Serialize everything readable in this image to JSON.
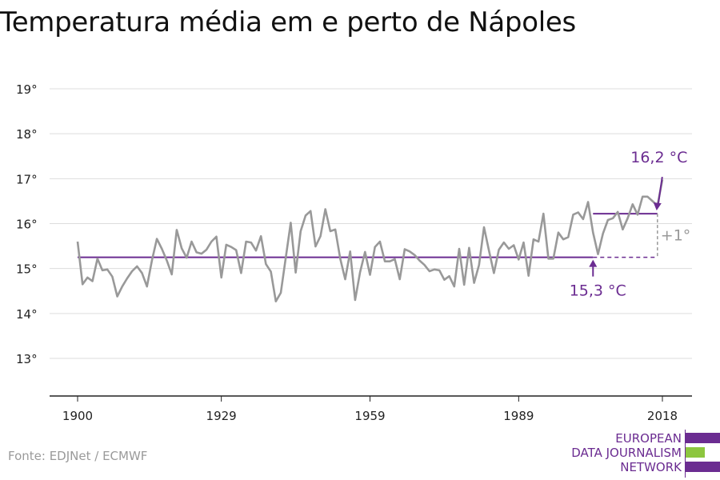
{
  "title": "Temperatura média em e perto de Nápoles",
  "source": "Fonte: EDJNet / ECMWF",
  "logo": {
    "lines": [
      "EUROPEAN",
      "DATA JOURNALISM",
      "NETWORK"
    ],
    "colors": [
      "#6b2c91",
      "#8dc63f",
      "#6b2c91"
    ]
  },
  "colors": {
    "series": "#999999",
    "baseline": "#6b2c91",
    "grid": "#dddddd",
    "axis": "#222222",
    "annotation": "#6b2c91",
    "difference": "#999999"
  },
  "chart_data": {
    "type": "line",
    "title": "Temperatura média em e perto de Nápoles",
    "xlabel": "",
    "ylabel": "",
    "xlim": [
      1900,
      2018
    ],
    "ylim": [
      12.2,
      19
    ],
    "x_ticks": [
      1900,
      1929,
      1959,
      1989,
      2018
    ],
    "y_ticks": [
      13,
      14,
      15,
      16,
      17,
      18,
      19
    ],
    "y_tick_labels": [
      "13°",
      "14°",
      "15°",
      "16°",
      "17°",
      "18°",
      "19°"
    ],
    "grid": true,
    "series": [
      {
        "x": [
          1900,
          1901,
          1902,
          1903,
          1904,
          1905,
          1906,
          1907,
          1908,
          1909,
          1910,
          1911,
          1912,
          1913,
          1914,
          1915,
          1916,
          1917,
          1918,
          1919,
          1920,
          1921,
          1922,
          1923,
          1924,
          1925,
          1926,
          1927,
          1928,
          1929,
          1930,
          1931,
          1932,
          1933,
          1934,
          1935,
          1936,
          1937,
          1938,
          1939,
          1940,
          1941,
          1942,
          1943,
          1944,
          1945,
          1946,
          1947,
          1948,
          1949,
          1950,
          1951,
          1952,
          1953,
          1954,
          1955,
          1956,
          1957,
          1958,
          1959,
          1960,
          1961,
          1962,
          1963,
          1964,
          1965,
          1966,
          1967,
          1968,
          1969,
          1970,
          1971,
          1972,
          1973,
          1974,
          1975,
          1976,
          1977,
          1978,
          1979,
          1980,
          1981,
          1982,
          1983,
          1984,
          1985,
          1986,
          1987,
          1988,
          1989,
          1990,
          1991,
          1992,
          1993,
          1994,
          1995,
          1996,
          1997,
          1998,
          1999,
          2000,
          2001,
          2002,
          2003,
          2004,
          2005,
          2006,
          2007,
          2008,
          2009,
          2010,
          2011,
          2012,
          2013,
          2014,
          2015,
          2016,
          2017,
          2018
        ],
        "values": [
          15.6,
          14.65,
          14.8,
          14.72,
          15.22,
          14.96,
          14.98,
          14.82,
          14.38,
          14.6,
          14.78,
          14.94,
          15.05,
          14.9,
          14.6,
          15.18,
          15.66,
          15.44,
          15.18,
          14.87,
          15.86,
          15.45,
          15.24,
          15.6,
          15.36,
          15.33,
          15.42,
          15.6,
          15.71,
          14.8,
          15.53,
          15.48,
          15.41,
          14.9,
          15.6,
          15.58,
          15.4,
          15.72,
          15.1,
          14.93,
          14.27,
          14.46,
          15.24,
          16.02,
          14.91,
          15.83,
          16.18,
          16.28,
          15.49,
          15.72,
          16.32,
          15.83,
          15.87,
          15.22,
          14.76,
          15.38,
          14.3,
          14.92,
          15.37,
          14.86,
          15.48,
          15.6,
          15.16,
          15.16,
          15.21,
          14.76,
          15.43,
          15.38,
          15.3,
          15.18,
          15.08,
          14.94,
          14.98,
          14.96,
          14.75,
          14.83,
          14.6,
          15.44,
          14.64,
          15.46,
          14.68,
          15.08,
          15.92,
          15.4,
          14.9,
          15.42,
          15.58,
          15.44,
          15.52,
          15.2,
          15.58,
          14.84,
          15.65,
          15.6,
          16.22,
          15.22,
          15.22,
          15.8,
          15.65,
          15.7,
          16.2,
          16.25,
          16.1,
          16.48,
          15.8,
          15.32,
          15.78,
          16.08,
          16.12,
          16.26,
          15.87,
          16.12,
          16.43,
          16.2,
          16.6,
          16.6,
          16.5,
          16.4,
          16.98
        ]
      }
    ],
    "baselines": [
      {
        "label": "15,3 °C",
        "value": 15.25,
        "from": 1900,
        "to": 2004,
        "dashed_to": 2017
      },
      {
        "label": "16,2 °C",
        "value": 16.22,
        "from": 2004,
        "to": 2017
      }
    ],
    "difference": {
      "label": "+1°",
      "x": 2017
    }
  }
}
